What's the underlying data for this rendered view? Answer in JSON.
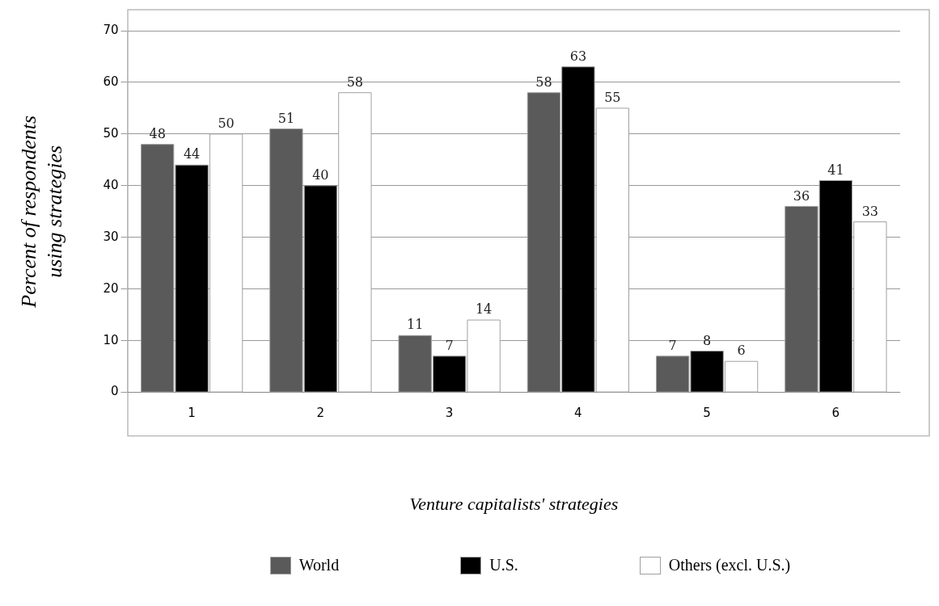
{
  "chart_data": {
    "type": "bar",
    "xlabel": "Venture capitalists' strategies",
    "ylabel": "Percent of respondents using strategies",
    "categories": [
      "1",
      "2",
      "3",
      "4",
      "5",
      "6"
    ],
    "series": [
      {
        "name": "World",
        "color": "#5a5a5a",
        "values": [
          48,
          51,
          11,
          58,
          7,
          36
        ]
      },
      {
        "name": "U.S.",
        "color": "#000000",
        "values": [
          44,
          40,
          7,
          63,
          8,
          41
        ]
      },
      {
        "name": "Others (excl. U.S.)",
        "color": "#ffffff",
        "values": [
          50,
          58,
          14,
          55,
          6,
          33
        ]
      }
    ],
    "ylim": [
      0,
      70
    ],
    "yticks": [
      0,
      10,
      20,
      30,
      40,
      50,
      60,
      70
    ],
    "grid": "y",
    "legend": "bottom",
    "data_labels": true
  }
}
